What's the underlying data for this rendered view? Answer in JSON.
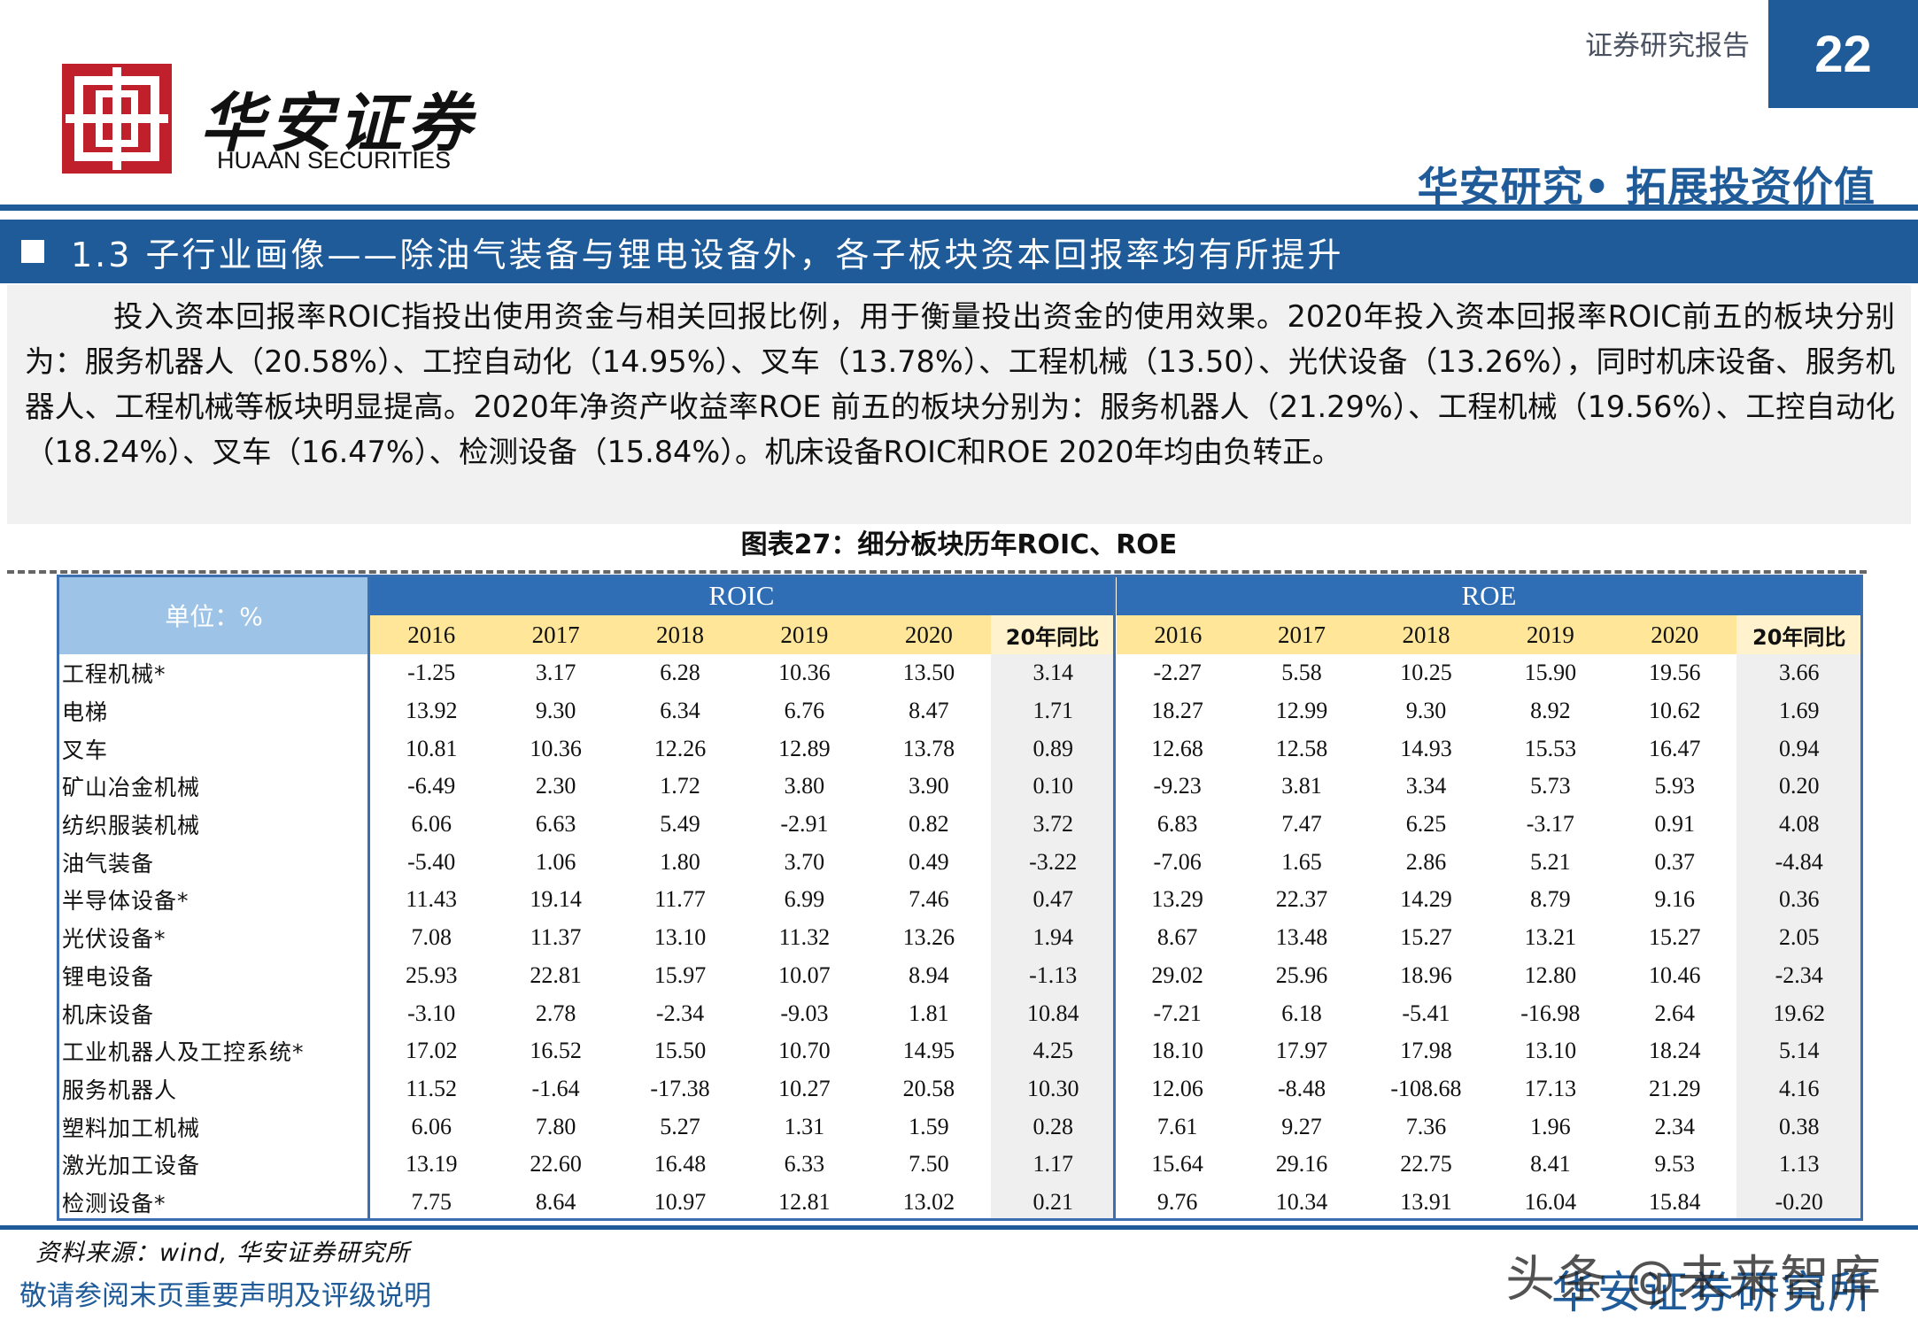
{
  "header": {
    "logo_cn": "华安证券",
    "logo_en": "HUAAN SECURITIES",
    "report_type": "证券研究报告",
    "page_number": "22",
    "slogan": "华安研究• 拓展投资价值",
    "accent_color": "#1f5b98",
    "logo_color": "#c0202c"
  },
  "section": {
    "title": "1.3 子行业画像——除油气装备与锂电设备外，各子板块资本回报率均有所提升"
  },
  "summary": "投入资本回报率ROIC指投出使用资金与相关回报比例，用于衡量投出资金的使用效果。2020年投入资本回报率ROIC前五的板块分别为：服务机器人（20.58%）、工控自动化（14.95%）、叉车（13.78%）、工程机械（13.50）、光伏设备（13.26%），同时机床设备、服务机器人、工程机械等板块明显提高。2020年净资产收益率ROE 前五的板块分别为：服务机器人（21.29%）、工程机械（19.56%）、工控自动化（18.24%）、叉车（16.47%）、检测设备（15.84%）。机床设备ROIC和ROE 2020年均由负转正。",
  "figure_caption": "图表27：细分板块历年ROIC、ROE",
  "table": {
    "unit_label": "单位：%",
    "groups": [
      "ROIC",
      "ROE"
    ],
    "years": [
      "2016",
      "2017",
      "2018",
      "2019",
      "2020",
      "20年同比"
    ],
    "rows": [
      {
        "name": "工程机械*",
        "roic": [
          "-1.25",
          "3.17",
          "6.28",
          "10.36",
          "13.50",
          "3.14"
        ],
        "roe": [
          "-2.27",
          "5.58",
          "10.25",
          "15.90",
          "19.56",
          "3.66"
        ]
      },
      {
        "name": "电梯",
        "roic": [
          "13.92",
          "9.30",
          "6.34",
          "6.76",
          "8.47",
          "1.71"
        ],
        "roe": [
          "18.27",
          "12.99",
          "9.30",
          "8.92",
          "10.62",
          "1.69"
        ]
      },
      {
        "name": "叉车",
        "roic": [
          "10.81",
          "10.36",
          "12.26",
          "12.89",
          "13.78",
          "0.89"
        ],
        "roe": [
          "12.68",
          "12.58",
          "14.93",
          "15.53",
          "16.47",
          "0.94"
        ]
      },
      {
        "name": "矿山冶金机械",
        "roic": [
          "-6.49",
          "2.30",
          "1.72",
          "3.80",
          "3.90",
          "0.10"
        ],
        "roe": [
          "-9.23",
          "3.81",
          "3.34",
          "5.73",
          "5.93",
          "0.20"
        ]
      },
      {
        "name": "纺织服装机械",
        "roic": [
          "6.06",
          "6.63",
          "5.49",
          "-2.91",
          "0.82",
          "3.72"
        ],
        "roe": [
          "6.83",
          "7.47",
          "6.25",
          "-3.17",
          "0.91",
          "4.08"
        ]
      },
      {
        "name": "油气装备",
        "roic": [
          "-5.40",
          "1.06",
          "1.80",
          "3.70",
          "0.49",
          "-3.22"
        ],
        "roe": [
          "-7.06",
          "1.65",
          "2.86",
          "5.21",
          "0.37",
          "-4.84"
        ]
      },
      {
        "name": "半导体设备*",
        "roic": [
          "11.43",
          "19.14",
          "11.77",
          "6.99",
          "7.46",
          "0.47"
        ],
        "roe": [
          "13.29",
          "22.37",
          "14.29",
          "8.79",
          "9.16",
          "0.36"
        ]
      },
      {
        "name": "光伏设备*",
        "roic": [
          "7.08",
          "11.37",
          "13.10",
          "11.32",
          "13.26",
          "1.94"
        ],
        "roe": [
          "8.67",
          "13.48",
          "15.27",
          "13.21",
          "15.27",
          "2.05"
        ]
      },
      {
        "name": "锂电设备",
        "roic": [
          "25.93",
          "22.81",
          "15.97",
          "10.07",
          "8.94",
          "-1.13"
        ],
        "roe": [
          "29.02",
          "25.96",
          "18.96",
          "12.80",
          "10.46",
          "-2.34"
        ]
      },
      {
        "name": "机床设备",
        "roic": [
          "-3.10",
          "2.78",
          "-2.34",
          "-9.03",
          "1.81",
          "10.84"
        ],
        "roe": [
          "-7.21",
          "6.18",
          "-5.41",
          "-16.98",
          "2.64",
          "19.62"
        ]
      },
      {
        "name": "工业机器人及工控系统*",
        "roic": [
          "17.02",
          "16.52",
          "15.50",
          "10.70",
          "14.95",
          "4.25"
        ],
        "roe": [
          "18.10",
          "17.97",
          "17.98",
          "13.10",
          "18.24",
          "5.14"
        ]
      },
      {
        "name": "服务机器人",
        "roic": [
          "11.52",
          "-1.64",
          "-17.38",
          "10.27",
          "20.58",
          "10.30"
        ],
        "roe": [
          "12.06",
          "-8.48",
          "-108.68",
          "17.13",
          "21.29",
          "4.16"
        ]
      },
      {
        "name": "塑料加工机械",
        "roic": [
          "6.06",
          "7.80",
          "5.27",
          "1.31",
          "1.59",
          "0.28"
        ],
        "roe": [
          "7.61",
          "9.27",
          "7.36",
          "1.96",
          "2.34",
          "0.38"
        ]
      },
      {
        "name": "激光加工设备",
        "roic": [
          "13.19",
          "22.60",
          "16.48",
          "6.33",
          "7.50",
          "1.17"
        ],
        "roe": [
          "15.64",
          "29.16",
          "22.75",
          "8.41",
          "9.53",
          "1.13"
        ]
      },
      {
        "name": "检测设备*",
        "roic": [
          "7.75",
          "8.64",
          "10.97",
          "12.81",
          "13.02",
          "0.21"
        ],
        "roe": [
          "9.76",
          "10.34",
          "13.91",
          "16.04",
          "15.84",
          "-0.20"
        ]
      }
    ]
  },
  "footer": {
    "source": "资料来源：wind, 华安证券研究所",
    "disclaimer": "敬请参阅末页重要声明及评级说明",
    "brand": "华安证券研究所",
    "watermark": "头条 @未来智库"
  }
}
